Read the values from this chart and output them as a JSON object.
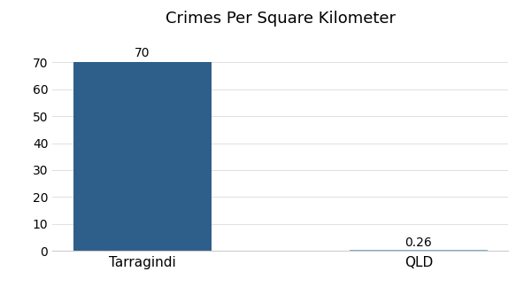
{
  "categories": [
    "Tarragindi",
    "QLD"
  ],
  "values": [
    70,
    0.26
  ],
  "bar_colors": [
    "#2e5f8a",
    "#7ab0c8"
  ],
  "title": "Crimes Per Square Kilometer",
  "title_fontsize": 13,
  "bar_labels": [
    "70",
    "0.26"
  ],
  "ylim": [
    0,
    80
  ],
  "yticks": [
    0,
    10,
    20,
    30,
    40,
    50,
    60,
    70
  ],
  "background_color": "#ffffff",
  "tick_label_fontsize": 10,
  "bar_label_fontsize": 10,
  "xlabel_fontsize": 11
}
